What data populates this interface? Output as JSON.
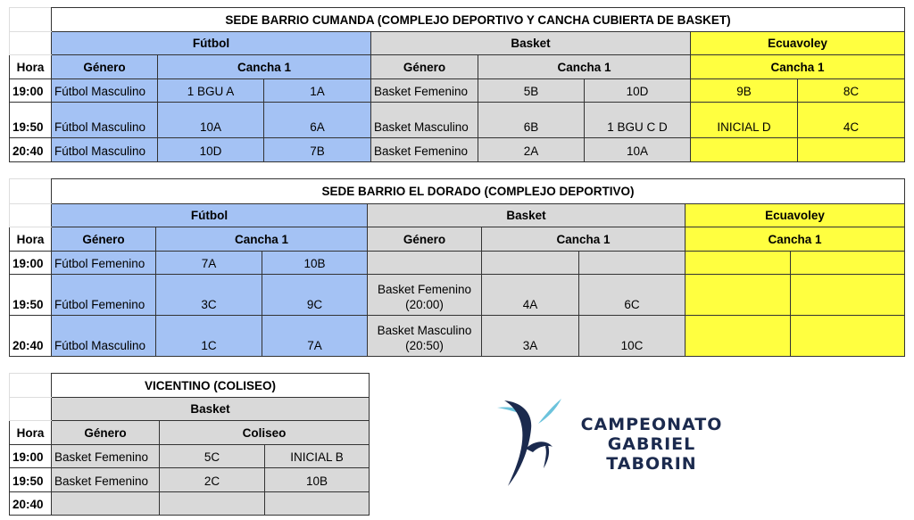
{
  "colors": {
    "futbol": "#a4c2f4",
    "basket": "#d9d9d9",
    "ecuavoley": "#ffff40"
  },
  "tables": [
    {
      "title": "SEDE BARRIO CUMANDA (COMPLEJO DEPORTIVO Y CANCHA CUBIERTA DE BASKET)",
      "sports": {
        "futbol": "Fútbol",
        "basket": "Basket",
        "ecuavoley": "Ecuavoley"
      },
      "headers": {
        "hora": "Hora",
        "genero": "Género",
        "cancha": "Cancha 1"
      },
      "rows": [
        {
          "hora": "19:00",
          "futbol": [
            "Fútbol Masculino",
            "1 BGU A",
            "1A"
          ],
          "basket": [
            "Basket Femenino",
            "5B",
            "10D"
          ],
          "ecuavoley": [
            "9B",
            "8C"
          ]
        },
        {
          "hora": "19:50",
          "futbol": [
            "Fútbol Masculino",
            "10A",
            "6A"
          ],
          "basket": [
            "Basket Masculino",
            "6B",
            "1 BGU C D"
          ],
          "ecuavoley": [
            "INICIAL D",
            "4C"
          ]
        },
        {
          "hora": "20:40",
          "futbol": [
            "Fútbol Masculino",
            "10D",
            "7B"
          ],
          "basket": [
            "Basket Femenino",
            "2A",
            "10A"
          ],
          "ecuavoley": [
            "",
            ""
          ]
        }
      ]
    },
    {
      "title": "SEDE BARRIO EL DORADO (COMPLEJO DEPORTIVO)",
      "sports": {
        "futbol": "Fútbol",
        "basket": "Basket",
        "ecuavoley": "Ecuavoley"
      },
      "headers": {
        "hora": "Hora",
        "genero": "Género",
        "cancha": "Cancha 1"
      },
      "rows": [
        {
          "hora": "19:00",
          "futbol": [
            "Fútbol Femenino",
            "7A",
            "10B"
          ],
          "basket": [
            "",
            "",
            ""
          ],
          "ecuavoley": [
            "",
            ""
          ]
        },
        {
          "hora": "19:50",
          "futbol": [
            "Fútbol Femenino",
            "3C",
            "9C"
          ],
          "basket": [
            "Basket Femenino\n(20:00)",
            "4A",
            "6C"
          ],
          "ecuavoley": [
            "",
            ""
          ]
        },
        {
          "hora": "20:40",
          "futbol": [
            "Fútbol Masculino",
            "1C",
            "7A"
          ],
          "basket": [
            "Basket Masculino\n(20:50)",
            "3A",
            "10C"
          ],
          "ecuavoley": [
            "",
            ""
          ]
        }
      ]
    },
    {
      "title": "VICENTINO (COLISEO)",
      "sports": {
        "basket": "Basket"
      },
      "headers": {
        "hora": "Hora",
        "genero": "Género",
        "cancha": "Coliseo"
      },
      "rows": [
        {
          "hora": "19:00",
          "basket": [
            "Basket Femenino",
            "5C",
            "INICIAL B"
          ]
        },
        {
          "hora": "19:50",
          "basket": [
            "Basket Femenino",
            "2C",
            "10B"
          ]
        },
        {
          "hora": "20:40",
          "basket": [
            "",
            "",
            ""
          ]
        }
      ]
    }
  ],
  "logo": {
    "line1": "CAMPEONATO",
    "line2": "GABRIEL",
    "line3": "TABORIN"
  }
}
